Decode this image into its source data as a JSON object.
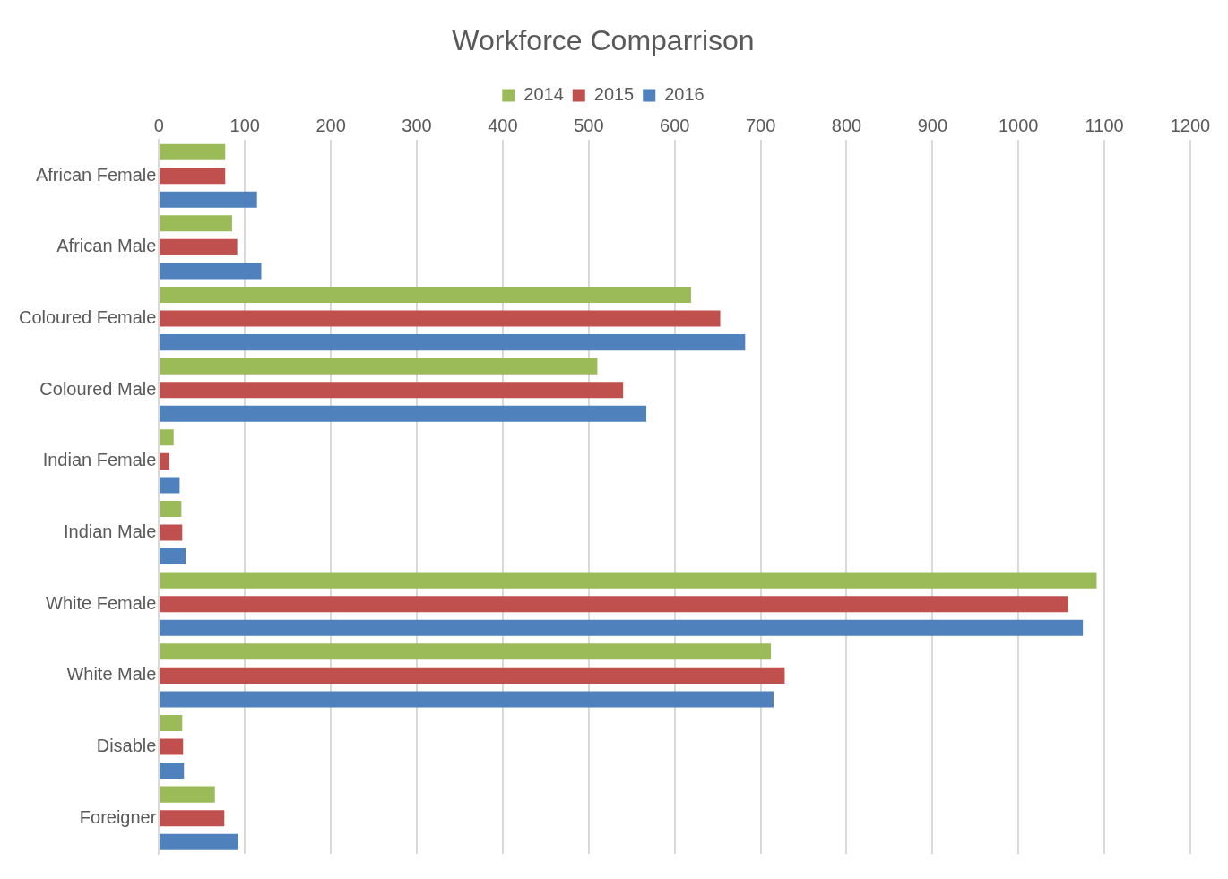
{
  "chart_data": {
    "type": "bar",
    "orientation": "horizontal",
    "title": "Workforce Comparrison",
    "categories": [
      "African Female",
      "African Male",
      "Coloured Female",
      "Coloured Male",
      "Indian Female",
      "Indian Male",
      "White Female",
      "White Male",
      "Disable",
      "Foreigner"
    ],
    "series": [
      {
        "name": "2014",
        "color": "#9bbb59",
        "values": [
          77,
          85,
          619,
          510,
          17,
          26,
          1091,
          712,
          27,
          65
        ]
      },
      {
        "name": "2015",
        "color": "#c0504d",
        "values": [
          77,
          91,
          653,
          540,
          12,
          27,
          1058,
          728,
          28,
          76
        ]
      },
      {
        "name": "2016",
        "color": "#4f81bd",
        "values": [
          114,
          119,
          682,
          567,
          24,
          31,
          1075,
          715,
          29,
          92
        ]
      }
    ],
    "xlim": [
      0,
      1200
    ],
    "xticks": [
      0,
      100,
      200,
      300,
      400,
      500,
      600,
      700,
      800,
      900,
      1000,
      1100,
      1200
    ],
    "grid": "x",
    "legend": "top"
  }
}
